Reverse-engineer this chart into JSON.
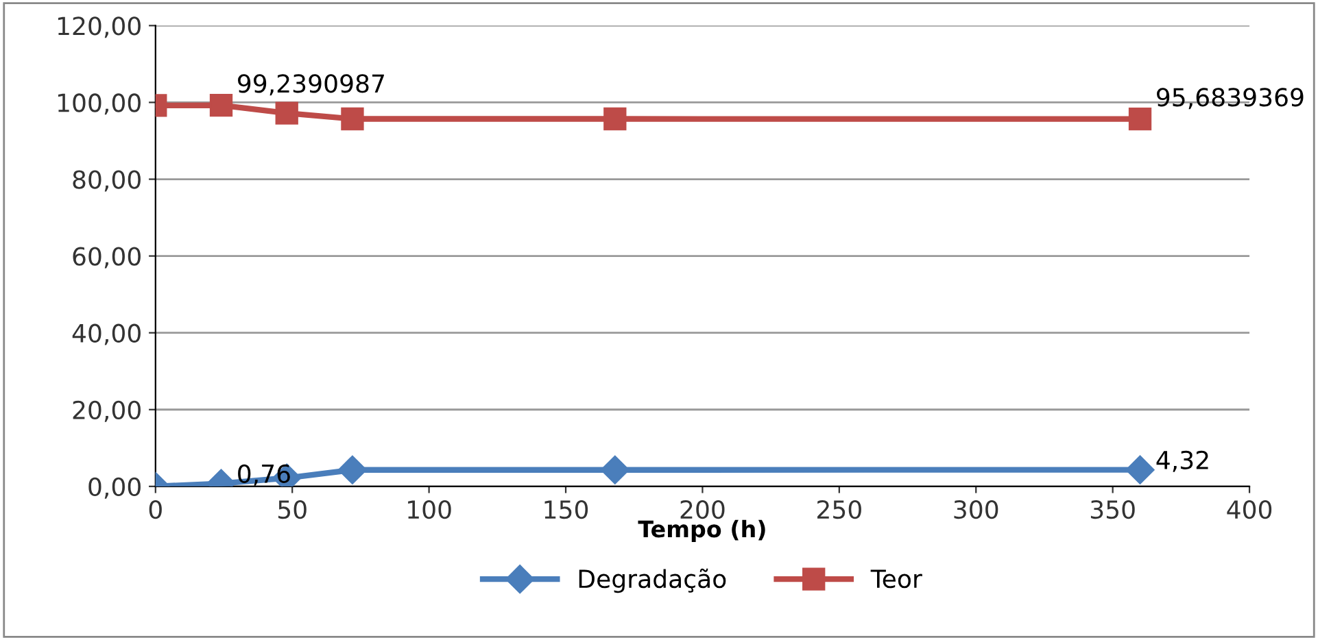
{
  "chart_data": {
    "type": "line",
    "xlabel": "Tempo (h)",
    "x": [
      0,
      24,
      48,
      72,
      168,
      360
    ],
    "series": [
      {
        "name": "Degradação",
        "color": "#4a7ebb",
        "marker": "diamond",
        "values": [
          0,
          0.76,
          2.2,
          4.3,
          4.3,
          4.32
        ],
        "value_labels": [
          null,
          "0,76",
          null,
          null,
          null,
          "4,32"
        ]
      },
      {
        "name": "Teor",
        "color": "#be4b48",
        "marker": "square",
        "values": [
          99.2,
          99.2390987,
          97.2,
          95.7,
          95.7,
          95.6839369
        ],
        "value_labels": [
          null,
          "99,2390987",
          null,
          null,
          null,
          "95,6839369"
        ]
      }
    ],
    "xlim": [
      0,
      400
    ],
    "xticks": [
      0,
      50,
      100,
      150,
      200,
      250,
      300,
      350,
      400
    ],
    "ylim": [
      0,
      120
    ],
    "yticks": [
      {
        "value": 0,
        "label": "0,00"
      },
      {
        "value": 20,
        "label": "20,00"
      },
      {
        "value": 40,
        "label": "40,00"
      },
      {
        "value": 60,
        "label": "60,00"
      },
      {
        "value": 80,
        "label": "80,00"
      },
      {
        "value": 100,
        "label": "100,00"
      },
      {
        "value": 120,
        "label": "120,00"
      }
    ],
    "grid": "y",
    "legend": "bottom"
  }
}
